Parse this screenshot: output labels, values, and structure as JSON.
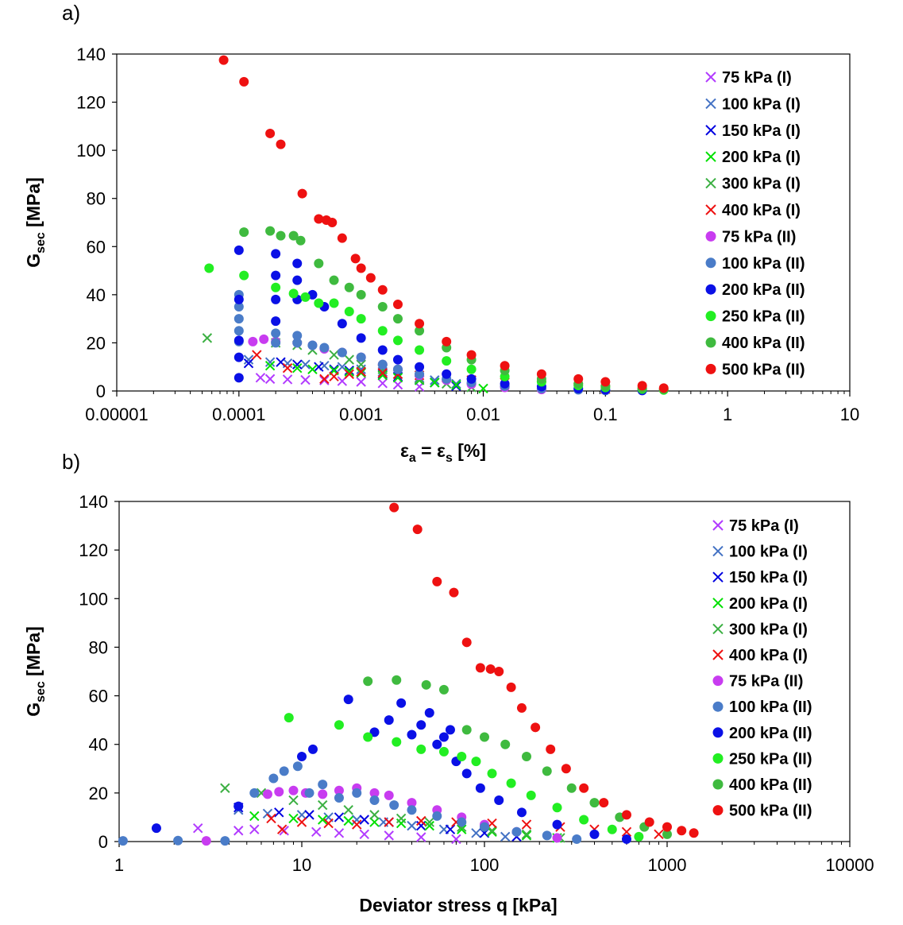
{
  "series_styles": [
    {
      "name": "75 kPa (I)",
      "marker": "x",
      "color": "#b23bff"
    },
    {
      "name": "100 kPa (I)",
      "marker": "x",
      "color": "#4472c4"
    },
    {
      "name": "150 kPa (I)",
      "marker": "x",
      "color": "#0000e0"
    },
    {
      "name": "200 kPa (I)",
      "marker": "x",
      "color": "#00e000"
    },
    {
      "name": "300 kPa (I)",
      "marker": "x",
      "color": "#3cb043"
    },
    {
      "name": "400 kPa (I)",
      "marker": "x",
      "color": "#ee1111"
    },
    {
      "name": "75 kPa (II)",
      "marker": "circle",
      "color": "#c83cf0"
    },
    {
      "name": "100 kPa (II)",
      "marker": "circle",
      "color": "#4a7cc8"
    },
    {
      "name": "200 kPa (II)",
      "marker": "circle",
      "color": "#0a10e6"
    },
    {
      "name": "250 kPa (II)",
      "marker": "circle",
      "color": "#22ee22"
    },
    {
      "name": "400 kPa (II)",
      "marker": "circle",
      "color": "#3fba3f"
    },
    {
      "name": "500 kPa (II)",
      "marker": "circle",
      "color": "#ee1111"
    }
  ],
  "chart_data": [
    {
      "panel_label": "a)",
      "type": "scatter",
      "xlabel_main": "ε",
      "xlabel_sub1": "a",
      "xlabel_mid": " = ε",
      "xlabel_sub2": "s",
      "xlabel_end": " [%]",
      "ylabel_main": "G",
      "ylabel_sub": "sec",
      "ylabel_end": " [MPa]",
      "x_scale": "log",
      "xlim": [
        1e-05,
        10
      ],
      "ylim": [
        0,
        140
      ],
      "x_ticks": [
        1e-05,
        0.0001,
        0.001,
        0.01,
        0.1,
        1,
        10
      ],
      "x_tick_labels": [
        "0.00001",
        "0.0001",
        "0.001",
        "0.01",
        "0.1",
        "1",
        "10"
      ],
      "y_ticks": [
        0,
        20,
        40,
        60,
        80,
        100,
        120,
        140
      ],
      "y_tick_labels": [
        "0",
        "20",
        "40",
        "60",
        "80",
        "100",
        "120",
        "140"
      ],
      "legend_position": "top-right",
      "series": [
        {
          "name": "75 kPa (I)",
          "x": [
            0.00015,
            0.00018,
            0.00025,
            0.00035,
            0.0005,
            0.0007,
            0.001,
            0.0015,
            0.002,
            0.003
          ],
          "y": [
            5.5,
            5,
            4.8,
            4.6,
            4.4,
            4.1,
            3.8,
            3.2,
            2.6,
            1.8
          ]
        },
        {
          "name": "100 kPa (I)",
          "x": [
            0.00012,
            0.00018,
            0.00025,
            0.00035,
            0.0005,
            0.0007,
            0.001,
            0.0015,
            0.002,
            0.003,
            0.004,
            0.006
          ],
          "y": [
            13,
            12,
            11.5,
            11,
            10.5,
            10,
            9,
            8,
            7,
            5.5,
            4.5,
            3
          ]
        },
        {
          "name": "150 kPa (I)",
          "x": [
            0.00012,
            0.00022,
            0.0003,
            0.00045,
            0.0006,
            0.0008,
            0.001,
            0.0015,
            0.002,
            0.003,
            0.004,
            0.006
          ],
          "y": [
            11.5,
            12,
            11,
            10,
            9,
            8.5,
            8,
            7,
            6,
            4.5,
            3.5,
            2
          ]
        },
        {
          "name": "200 kPa (I)",
          "x": [
            0.00018,
            0.0003,
            0.0004,
            0.0006,
            0.0008,
            0.001,
            0.0015,
            0.002,
            0.003,
            0.004,
            0.006,
            0.01
          ],
          "y": [
            10.5,
            9.5,
            9,
            8.5,
            8,
            7.5,
            6.5,
            5.5,
            4.5,
            3.5,
            2.5,
            1
          ]
        },
        {
          "name": "300 kPa (I)",
          "x": [
            5.5e-05,
            0.0002,
            0.0003,
            0.0004,
            0.0006,
            0.0008,
            0.001,
            0.0015,
            0.002,
            0.003,
            0.005,
            0.008
          ],
          "y": [
            22,
            20,
            19,
            17,
            15,
            13,
            11,
            9,
            7,
            5,
            3,
            1.5
          ]
        },
        {
          "name": "400 kPa (I)",
          "x": [
            0.00014,
            0.00025,
            0.0005,
            0.0006,
            0.0008,
            0.001,
            0.0015,
            0.002,
            0.003,
            0.005,
            0.008,
            0.015,
            0.03,
            0.06,
            0.1
          ],
          "y": [
            15,
            9.5,
            5,
            6,
            7,
            8,
            7.5,
            7,
            6.5,
            5.5,
            4.5,
            3.5,
            2.5,
            1.5,
            0.8
          ]
        },
        {
          "name": "75 kPa (II)",
          "x": [
            0.00013,
            0.00016,
            0.0002,
            0.0003,
            0.0004,
            0.0005,
            0.0007,
            0.001,
            0.0015,
            0.002,
            0.003,
            0.005,
            0.008,
            0.015,
            0.03
          ],
          "y": [
            20.5,
            21.5,
            20.5,
            20,
            19,
            17.5,
            16,
            14,
            11,
            9,
            6.5,
            4.5,
            2.8,
            1.5,
            0.6
          ]
        },
        {
          "name": "100 kPa (II)",
          "x": [
            0.0001,
            0.0001,
            0.0001,
            0.0001,
            0.0001,
            0.0002,
            0.0002,
            0.0003,
            0.0003,
            0.0004,
            0.0005,
            0.0007,
            0.001,
            0.0015,
            0.002,
            0.003,
            0.005,
            0.008,
            0.015,
            0.03,
            0.06,
            0.1
          ],
          "y": [
            20.5,
            25,
            30,
            35,
            40,
            20,
            24,
            20,
            23,
            19,
            18,
            16,
            14,
            11,
            9,
            7,
            5,
            3.5,
            2,
            1,
            0.5,
            0.2
          ]
        },
        {
          "name": "200 kPa (II)",
          "x": [
            0.0001,
            0.0001,
            0.0001,
            0.0001,
            0.0001,
            0.0002,
            0.0002,
            0.0002,
            0.0002,
            0.0003,
            0.0003,
            0.0003,
            0.0004,
            0.0005,
            0.0007,
            0.001,
            0.0015,
            0.002,
            0.003,
            0.005,
            0.008,
            0.015,
            0.03,
            0.06,
            0.1,
            0.2
          ],
          "y": [
            5.5,
            14,
            21,
            38,
            58.5,
            29,
            38,
            48,
            57,
            38,
            46,
            53,
            40,
            35,
            28,
            22,
            17,
            13,
            10,
            7,
            5,
            3,
            1.8,
            1,
            0.5,
            0.2
          ]
        },
        {
          "name": "250 kPa (II)",
          "x": [
            5.7e-05,
            0.00011,
            0.0002,
            0.00028,
            0.00035,
            0.00045,
            0.0006,
            0.0008,
            0.001,
            0.0015,
            0.002,
            0.003,
            0.005,
            0.008,
            0.015,
            0.03,
            0.06,
            0.1,
            0.2,
            0.3
          ],
          "y": [
            51,
            48,
            43,
            40.5,
            39,
            36.5,
            36.5,
            33,
            30,
            25,
            21,
            17,
            12.5,
            9,
            6,
            3.8,
            2.3,
            1.5,
            0.8,
            0.4
          ]
        },
        {
          "name": "400 kPa (II)",
          "x": [
            0.00011,
            0.00018,
            0.00022,
            0.00028,
            0.00032,
            0.00045,
            0.0006,
            0.0008,
            0.001,
            0.0015,
            0.002,
            0.003,
            0.005,
            0.008,
            0.015,
            0.03,
            0.06,
            0.1,
            0.2,
            0.3
          ],
          "y": [
            66,
            66.5,
            64.5,
            64.5,
            62.5,
            53,
            46,
            43,
            40,
            35,
            30,
            25,
            18,
            13,
            8.5,
            5,
            3,
            2,
            1.2,
            0.7
          ]
        },
        {
          "name": "500 kPa (II)",
          "x": [
            7.5e-05,
            0.00011,
            0.00018,
            0.00022,
            0.00033,
            0.00045,
            0.00052,
            0.00058,
            0.0007,
            0.0009,
            0.001,
            0.0012,
            0.0015,
            0.002,
            0.003,
            0.005,
            0.008,
            0.015,
            0.03,
            0.06,
            0.1,
            0.2,
            0.3
          ],
          "y": [
            137.5,
            128.5,
            107,
            102.5,
            82,
            71.5,
            71,
            70,
            63.5,
            55,
            51,
            47,
            42,
            36,
            28,
            20.5,
            15,
            10.5,
            7,
            5,
            3.8,
            2.2,
            1.2
          ]
        }
      ]
    },
    {
      "panel_label": "b)",
      "type": "scatter",
      "xlabel": "Deviator stress q [kPa]",
      "ylabel_main": "G",
      "ylabel_sub": "sec",
      "ylabel_end": " [MPa]",
      "x_scale": "log",
      "xlim": [
        1,
        10000
      ],
      "ylim": [
        0,
        140
      ],
      "x_ticks": [
        1,
        10,
        100,
        1000,
        10000
      ],
      "x_tick_labels": [
        "1",
        "10",
        "100",
        "1000",
        "10000"
      ],
      "y_ticks": [
        0,
        20,
        40,
        60,
        80,
        100,
        120,
        140
      ],
      "y_tick_labels": [
        "0",
        "20",
        "40",
        "60",
        "80",
        "100",
        "120",
        "140"
      ],
      "legend_position": "top-right",
      "series": [
        {
          "name": "75 kPa (I)",
          "x": [
            2.7,
            4.5,
            5.5,
            8,
            12,
            16,
            22,
            30,
            45,
            70
          ],
          "y": [
            5.5,
            4.5,
            5,
            4.5,
            4,
            3.5,
            3,
            2.5,
            1.8,
            1
          ]
        },
        {
          "name": "100 kPa (I)",
          "x": [
            4.5,
            6.5,
            10,
            14,
            20,
            28,
            40,
            60,
            90,
            130
          ],
          "y": [
            13,
            11.5,
            11,
            10,
            9,
            8,
            6.5,
            5,
            3.5,
            2
          ]
        },
        {
          "name": "150 kPa (I)",
          "x": [
            4.5,
            7.5,
            11,
            16,
            22,
            30,
            45,
            65,
            100,
            150
          ],
          "y": [
            14,
            12,
            11,
            10,
            9,
            8,
            6.5,
            5,
            3.5,
            2
          ]
        },
        {
          "name": "200 kPa (I)",
          "x": [
            5.5,
            9,
            13,
            18,
            25,
            35,
            50,
            75,
            110,
            170,
            250
          ],
          "y": [
            10.5,
            9.5,
            9,
            8.5,
            8,
            7.5,
            6.5,
            5,
            4,
            2.5,
            1.5
          ]
        },
        {
          "name": "300 kPa (I)",
          "x": [
            3.8,
            6,
            9,
            13,
            18,
            25,
            35,
            50,
            75,
            110,
            170,
            260
          ],
          "y": [
            22,
            20,
            17,
            15,
            13,
            11,
            9.5,
            8,
            6,
            4.5,
            3,
            1.5
          ]
        },
        {
          "name": "400 kPa (I)",
          "x": [
            6.8,
            7.8,
            10,
            14,
            20,
            30,
            45,
            70,
            110,
            170,
            260,
            400,
            600,
            900
          ],
          "y": [
            9.5,
            5,
            8,
            7.5,
            7,
            8,
            8.5,
            8,
            7.5,
            7,
            6,
            5,
            4,
            3
          ]
        },
        {
          "name": "75 kPa (II)",
          "x": [
            3,
            6.5,
            7.5,
            9,
            10.5,
            13,
            16,
            20,
            25,
            30,
            40,
            55,
            75,
            100,
            150,
            250
          ],
          "y": [
            0.3,
            19.5,
            20.5,
            21,
            20,
            19.5,
            21,
            22,
            20,
            19,
            16,
            13,
            10,
            7,
            4,
            1.5
          ]
        },
        {
          "name": "100 kPa (II)",
          "x": [
            1.05,
            2.1,
            3.8,
            5.5,
            7,
            8,
            9.5,
            11,
            13,
            16,
            20,
            25,
            32,
            40,
            55,
            75,
            100,
            150,
            220,
            320
          ],
          "y": [
            0.3,
            0.4,
            0.3,
            20,
            26,
            29,
            31,
            20,
            23.5,
            18,
            20,
            17,
            15,
            13,
            10.5,
            8,
            6,
            4,
            2.5,
            1
          ]
        },
        {
          "name": "200 kPa (II)",
          "x": [
            1.6,
            4.5,
            10,
            11.5,
            18,
            25,
            30,
            35,
            40,
            45,
            50,
            55,
            60,
            65,
            70,
            80,
            95,
            120,
            160,
            250,
            400,
            600
          ],
          "y": [
            5.5,
            14.5,
            35,
            38,
            58.5,
            45,
            50,
            57,
            44,
            48,
            53,
            40,
            43,
            46,
            33,
            28,
            22,
            17,
            12,
            7,
            3,
            1
          ]
        },
        {
          "name": "250 kPa (II)",
          "x": [
            8.5,
            16,
            23,
            33,
            45,
            60,
            75,
            90,
            110,
            140,
            180,
            250,
            350,
            500,
            700
          ],
          "y": [
            51,
            48,
            43,
            41,
            38,
            37,
            35,
            33,
            28,
            24,
            19,
            14,
            9,
            5,
            2
          ]
        },
        {
          "name": "400 kPa (II)",
          "x": [
            23,
            33,
            48,
            60,
            80,
            100,
            130,
            170,
            220,
            300,
            400,
            550,
            750,
            1000
          ],
          "y": [
            66,
            66.5,
            64.5,
            62.5,
            46,
            43,
            40,
            35,
            29,
            22,
            16,
            10,
            6,
            3
          ]
        },
        {
          "name": "500 kPa (II)",
          "x": [
            32,
            43,
            55,
            68,
            80,
            95,
            108,
            120,
            140,
            160,
            190,
            230,
            280,
            350,
            450,
            600,
            800,
            1000,
            1200,
            1400
          ],
          "y": [
            137.5,
            128.5,
            107,
            102.5,
            82,
            71.5,
            71,
            70,
            63.5,
            55,
            47,
            38,
            30,
            22,
            16,
            11,
            8,
            6,
            4.5,
            3.5
          ]
        }
      ]
    }
  ]
}
